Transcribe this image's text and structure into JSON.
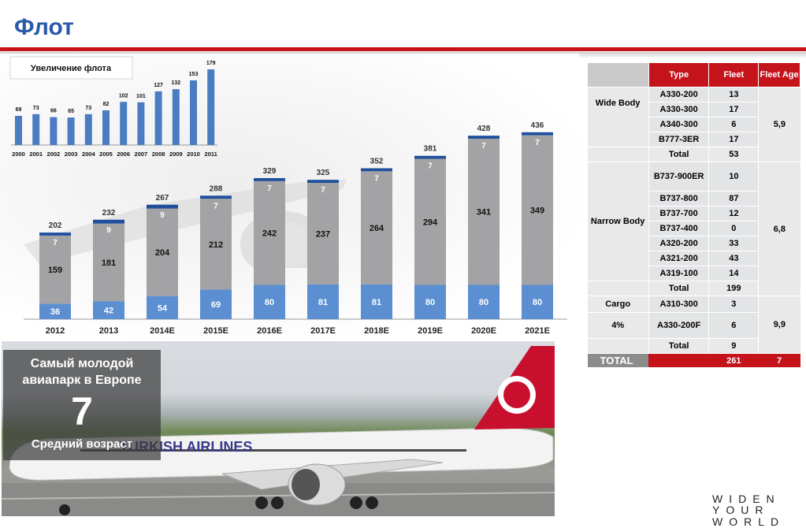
{
  "page": {
    "title": "Флот",
    "slogan_line1": "WIDEN YOUR",
    "slogan_line2": "WORLD"
  },
  "chart_data": [
    {
      "type": "bar",
      "title": "Увеличение флота",
      "categories": [
        "2000",
        "2001",
        "2002",
        "2003",
        "2004",
        "2005",
        "2006",
        "2007",
        "2008",
        "2009",
        "2010",
        "2011"
      ],
      "values": [
        69,
        73,
        66,
        65,
        73,
        82,
        102,
        101,
        127,
        132,
        153,
        179
      ],
      "ylim": [
        0,
        179
      ],
      "color": "#4a7cc2"
    },
    {
      "type": "bar",
      "stacked": true,
      "categories": [
        "2012",
        "2013",
        "2014E",
        "2015E",
        "2016E",
        "2017E",
        "2018E",
        "2019E",
        "2020E",
        "2021E"
      ],
      "series": [
        {
          "name": "Wide Body",
          "color": "#5b8fd1",
          "values": [
            36,
            42,
            54,
            69,
            80,
            81,
            81,
            80,
            80,
            80
          ]
        },
        {
          "name": "Narrow Body",
          "color": "#a3a3a5",
          "values": [
            159,
            181,
            204,
            212,
            242,
            237,
            264,
            294,
            341,
            349
          ]
        },
        {
          "name": "Cargo",
          "color": "#1f4f9c",
          "values": [
            7,
            9,
            9,
            7,
            7,
            7,
            7,
            7,
            7,
            7
          ]
        }
      ],
      "totals": [
        202,
        232,
        267,
        288,
        329,
        325,
        352,
        381,
        428,
        436
      ],
      "legend_position": "bottom"
    }
  ],
  "fleet_table": {
    "headers": {
      "type": "Type",
      "fleet": "Fleet",
      "age": "Fleet Age"
    },
    "wide": {
      "label": "Wide Body",
      "age": "5,9",
      "rows": [
        {
          "type": "A330-200",
          "fleet": "13"
        },
        {
          "type": "A330-300",
          "fleet": "17"
        },
        {
          "type": "A340-300",
          "fleet": "6"
        },
        {
          "type": "B777-3ER",
          "fleet": "17"
        }
      ],
      "total": {
        "label": "Total",
        "fleet": "53"
      }
    },
    "narrow": {
      "label": "Narrow Body",
      "age": "6,8",
      "rows": [
        {
          "type": "B737-900ER",
          "fleet": "10"
        },
        {
          "type": "B737-800",
          "fleet": "87"
        },
        {
          "type": "B737-700",
          "fleet": "12"
        },
        {
          "type": "B737-400",
          "fleet": "0"
        },
        {
          "type": "A320-200",
          "fleet": "33"
        },
        {
          "type": "A321-200",
          "fleet": "43"
        },
        {
          "type": "A319-100",
          "fleet": "14"
        }
      ],
      "total": {
        "label": "Total",
        "fleet": "199"
      }
    },
    "cargo": {
      "label": "Cargo",
      "share": "4%",
      "age": "9,9",
      "rows": [
        {
          "type": "A310-300",
          "fleet": "3"
        },
        {
          "type": "A330-200F",
          "fleet": "6"
        }
      ],
      "total": {
        "label": "Total",
        "fleet": "9"
      }
    },
    "grand": {
      "label": "TOTAL",
      "fleet": "261",
      "age": "7"
    }
  },
  "overlay": {
    "line1": "Самый молодой",
    "line2": "авиапарк в Европе",
    "number": "7",
    "subtitle": "Средний возраст"
  },
  "photo": {
    "livery": "TURKISH AIRLINES"
  }
}
